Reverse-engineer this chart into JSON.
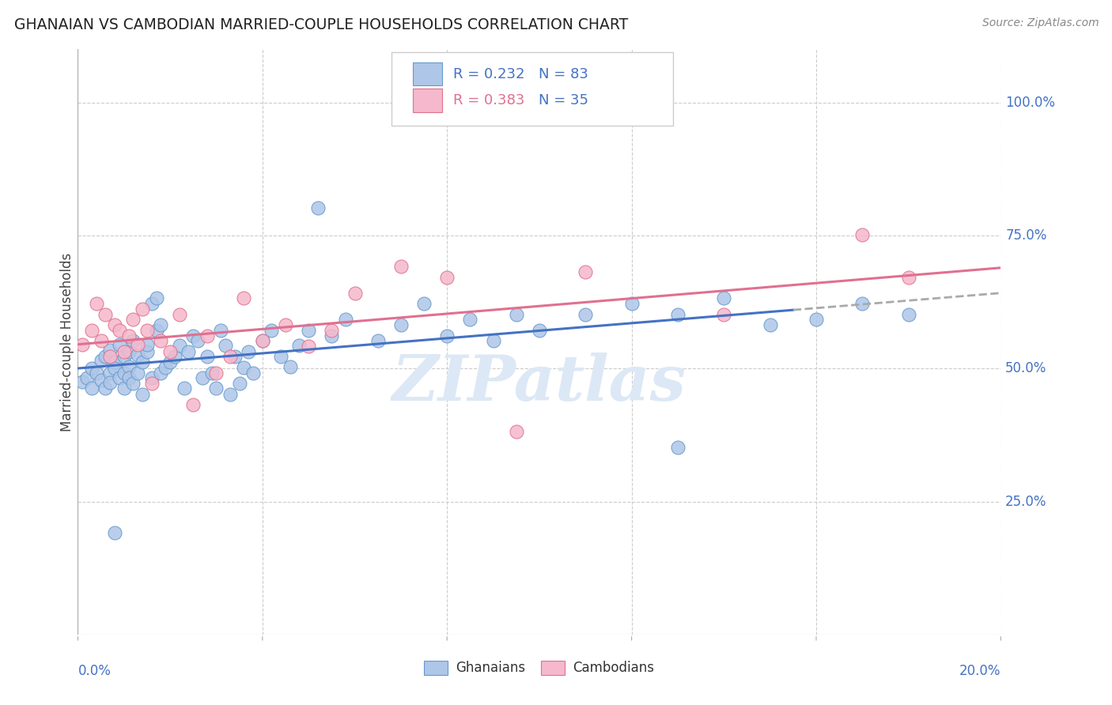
{
  "title": "GHANAIAN VS CAMBODIAN MARRIED-COUPLE HOUSEHOLDS CORRELATION CHART",
  "source": "Source: ZipAtlas.com",
  "xlabel_bottom_left": "0.0%",
  "xlabel_bottom_right": "20.0%",
  "ylabel": "Married-couple Households",
  "ytick_labels": [
    "25.0%",
    "50.0%",
    "75.0%",
    "100.0%"
  ],
  "ytick_values": [
    0.25,
    0.5,
    0.75,
    1.0
  ],
  "xmin": 0.0,
  "xmax": 0.2,
  "ymin": 0.0,
  "ymax": 1.1,
  "ghanaian_color": "#aec6e8",
  "cambodian_color": "#f5b8cc",
  "ghanaian_edge": "#6699cc",
  "cambodian_edge": "#e0708a",
  "trend_blue": "#4472c4",
  "trend_pink": "#e07090",
  "trend_dashed_color": "#aaaaaa",
  "watermark_text": "ZIPatlas",
  "watermark_color": "#dce8f5",
  "legend_color_blue": "#4472c4",
  "legend_color_pink": "#e07090",
  "R_ghanaian": 0.232,
  "N_ghanaian": 83,
  "R_cambodian": 0.383,
  "N_cambodian": 35,
  "ghanaian_x": [
    0.001,
    0.002,
    0.003,
    0.003,
    0.004,
    0.005,
    0.005,
    0.006,
    0.006,
    0.007,
    0.007,
    0.007,
    0.008,
    0.008,
    0.009,
    0.009,
    0.01,
    0.01,
    0.01,
    0.011,
    0.011,
    0.011,
    0.012,
    0.012,
    0.013,
    0.013,
    0.014,
    0.014,
    0.015,
    0.015,
    0.016,
    0.016,
    0.017,
    0.017,
    0.018,
    0.018,
    0.019,
    0.02,
    0.021,
    0.022,
    0.023,
    0.024,
    0.025,
    0.026,
    0.027,
    0.028,
    0.029,
    0.03,
    0.031,
    0.032,
    0.033,
    0.034,
    0.035,
    0.036,
    0.037,
    0.038,
    0.04,
    0.042,
    0.044,
    0.046,
    0.048,
    0.05,
    0.052,
    0.055,
    0.058,
    0.065,
    0.07,
    0.075,
    0.08,
    0.085,
    0.09,
    0.095,
    0.1,
    0.11,
    0.12,
    0.13,
    0.14,
    0.15,
    0.16,
    0.17,
    0.18,
    0.13,
    0.008
  ],
  "ghanaian_y": [
    0.475,
    0.482,
    0.5,
    0.463,
    0.492,
    0.515,
    0.478,
    0.522,
    0.463,
    0.535,
    0.492,
    0.473,
    0.512,
    0.5,
    0.545,
    0.482,
    0.522,
    0.492,
    0.463,
    0.532,
    0.503,
    0.483,
    0.552,
    0.472,
    0.525,
    0.492,
    0.452,
    0.512,
    0.532,
    0.545,
    0.483,
    0.622,
    0.572,
    0.632,
    0.492,
    0.582,
    0.502,
    0.513,
    0.523,
    0.543,
    0.463,
    0.532,
    0.562,
    0.552,
    0.483,
    0.522,
    0.492,
    0.463,
    0.572,
    0.543,
    0.452,
    0.523,
    0.472,
    0.502,
    0.532,
    0.492,
    0.552,
    0.572,
    0.523,
    0.503,
    0.543,
    0.572,
    0.802,
    0.562,
    0.592,
    0.552,
    0.582,
    0.622,
    0.562,
    0.592,
    0.552,
    0.602,
    0.572,
    0.602,
    0.622,
    0.602,
    0.632,
    0.582,
    0.592,
    0.622,
    0.602,
    0.352,
    0.192
  ],
  "cambodian_x": [
    0.001,
    0.003,
    0.004,
    0.005,
    0.006,
    0.007,
    0.008,
    0.009,
    0.01,
    0.011,
    0.012,
    0.013,
    0.014,
    0.015,
    0.016,
    0.018,
    0.02,
    0.022,
    0.025,
    0.028,
    0.03,
    0.033,
    0.036,
    0.04,
    0.045,
    0.05,
    0.055,
    0.06,
    0.07,
    0.08,
    0.095,
    0.11,
    0.14,
    0.17,
    0.18
  ],
  "cambodian_y": [
    0.545,
    0.572,
    0.622,
    0.552,
    0.602,
    0.522,
    0.582,
    0.572,
    0.532,
    0.562,
    0.592,
    0.545,
    0.612,
    0.572,
    0.472,
    0.552,
    0.532,
    0.602,
    0.432,
    0.562,
    0.492,
    0.522,
    0.632,
    0.552,
    0.582,
    0.542,
    0.572,
    0.642,
    0.692,
    0.672,
    0.382,
    0.682,
    0.602,
    0.752,
    0.672
  ],
  "grid_x_ticks": [
    0.0,
    0.04,
    0.08,
    0.12,
    0.16,
    0.2
  ],
  "bottom_xticks": [
    0.0,
    0.04,
    0.08,
    0.12,
    0.16,
    0.2
  ]
}
